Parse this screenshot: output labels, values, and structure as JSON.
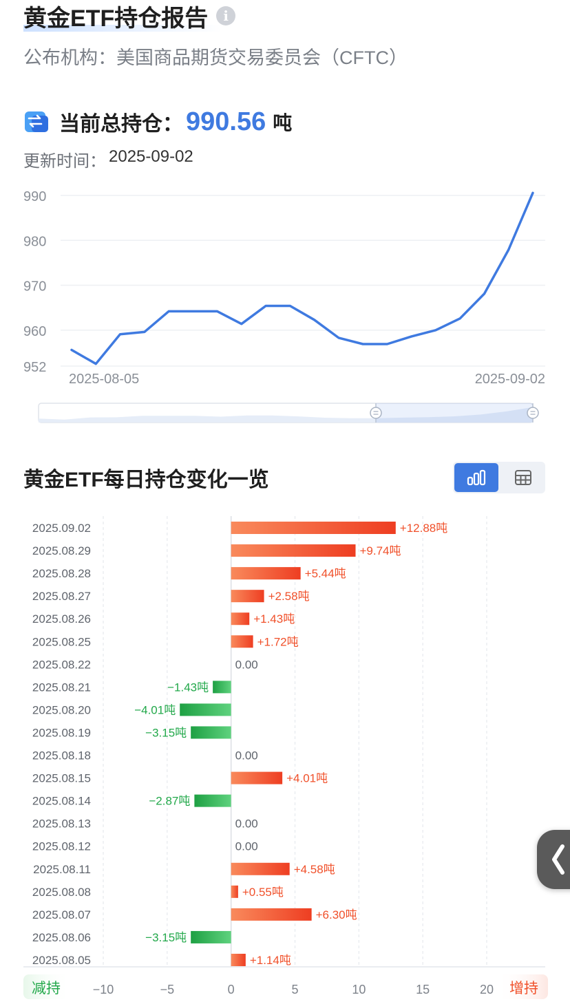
{
  "header": {
    "title": "黄金ETF持仓报告",
    "publisher": "公布机构：美国商品期货交易委员会（CFTC）"
  },
  "summary": {
    "label": "当前总持仓：",
    "value": "990.56",
    "unit": "吨",
    "update_label": "更新时间：",
    "update_value": "2025-09-02"
  },
  "section": {
    "title": "黄金ETF每日持仓变化一览",
    "decrease_label": "减持",
    "increase_label": "增持"
  },
  "colors": {
    "accent": "#3f7ae0",
    "increase": "#f0502a",
    "decrease": "#22a84a"
  },
  "chart_data": [
    {
      "type": "line",
      "x_labels": [
        "2025-08-05",
        "2025-09-02"
      ],
      "y_ticks": [
        952,
        960,
        970,
        980,
        990
      ],
      "ylim": [
        952,
        990
      ],
      "grid": true,
      "series": [
        {
          "values": [
            955.6,
            952.5,
            959.1,
            959.6,
            964.2,
            964.2,
            964.2,
            961.4,
            965.4,
            965.4,
            962.3,
            958.3,
            956.9,
            956.9,
            958.6,
            960.0,
            962.6,
            968.1,
            977.9,
            990.56
          ]
        }
      ]
    },
    {
      "type": "bar",
      "orientation": "horizontal",
      "categories": [
        "2025.09.02",
        "2025.08.29",
        "2025.08.28",
        "2025.08.27",
        "2025.08.26",
        "2025.08.25",
        "2025.08.22",
        "2025.08.21",
        "2025.08.20",
        "2025.08.19",
        "2025.08.18",
        "2025.08.15",
        "2025.08.14",
        "2025.08.13",
        "2025.08.12",
        "2025.08.11",
        "2025.08.08",
        "2025.08.07",
        "2025.08.06",
        "2025.08.05"
      ],
      "values": [
        12.88,
        9.74,
        5.44,
        2.58,
        1.43,
        1.72,
        0,
        -1.43,
        -4.01,
        -3.15,
        0,
        4.01,
        -2.87,
        0,
        0,
        4.58,
        0.55,
        6.3,
        -3.15,
        1.14
      ],
      "labels": [
        "+12.88吨",
        "+9.74吨",
        "+5.44吨",
        "+2.58吨",
        "+1.43吨",
        "+1.72吨",
        "0.00",
        "−1.43吨",
        "−4.01吨",
        "−3.15吨",
        "0.00",
        "+4.01吨",
        "−2.87吨",
        "0.00",
        "0.00",
        "+4.58吨",
        "+0.55吨",
        "+6.30吨",
        "−3.15吨",
        "+1.14吨"
      ],
      "x_ticks": [
        -10,
        -5,
        0,
        5,
        10,
        15,
        20
      ],
      "x_tick_labels": [
        "−10",
        "−5",
        "0",
        "5",
        "10",
        "15",
        "20"
      ],
      "xlim": [
        -10,
        20
      ],
      "grid": true
    }
  ]
}
